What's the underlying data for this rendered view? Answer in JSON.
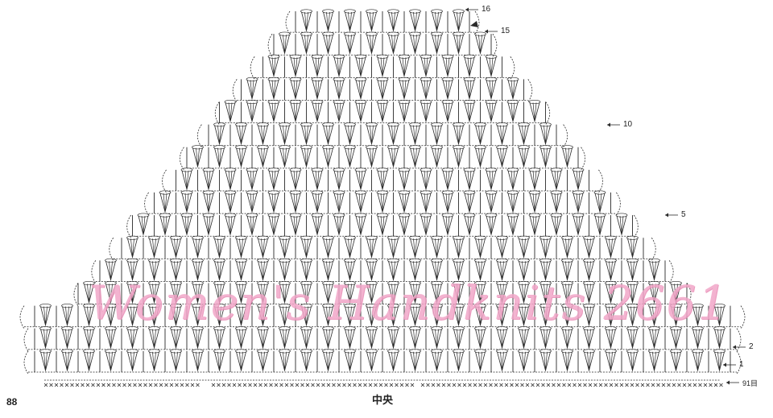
{
  "diagram": {
    "type": "crochet-chart",
    "row_labels": [
      {
        "row": "16",
        "text": "16"
      },
      {
        "row": "15",
        "text": "15"
      },
      {
        "row": "10",
        "text": "10"
      },
      {
        "row": "5",
        "text": "5"
      },
      {
        "row": "2",
        "text": "2"
      },
      {
        "row": "1",
        "text": "1"
      }
    ],
    "foundation_label": "91目",
    "center_label": "中央",
    "page_number": "88",
    "watermark": "Women's Handknits 2661",
    "row_count": 16,
    "stitch_color": "#2a2a2a",
    "watermark_color": "#f2a6c8"
  }
}
